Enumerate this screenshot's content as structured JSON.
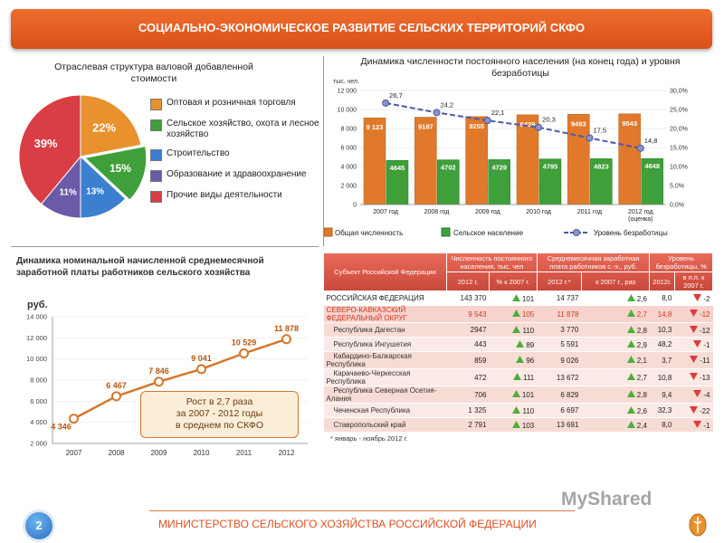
{
  "header": {
    "title": "СОЦИАЛЬНО-ЭКОНОМИЧЕСКОЕ РАЗВИТИЕ СЕЛЬСКИХ ТЕРРИТОРИЙ СКФО"
  },
  "footer": {
    "page_number": "2",
    "ministry": "МИНИСТЕРСТВО СЕЛЬСКОГО ХОЗЯЙСТВА РОССИЙСКОЙ ФЕДЕРАЦИИ",
    "watermark": "MyShared"
  },
  "colors": {
    "accent": "#e05a22",
    "bar_total": "#e07a2a",
    "bar_rural": "#3f9f3a",
    "line": "#4a5aa8"
  },
  "chart_data": [
    {
      "type": "pie",
      "title": "Отраслевая структура валовой добавленной стоимости",
      "slices": [
        {
          "label": "Оптовая и розничная торговля",
          "value": 22,
          "pct_label": "22%",
          "color": "#e8912d"
        },
        {
          "label": "Сельское хозяйство, охота и лесное хозяйство",
          "value": 15,
          "pct_label": "15%",
          "color": "#3f9f3a"
        },
        {
          "label": "Строительство",
          "value": 13,
          "pct_label": "13%",
          "color": "#3b7fd1"
        },
        {
          "label": "Образование и здравоохранение",
          "value": 11,
          "pct_label": "11%",
          "color": "#6b5aa8"
        },
        {
          "label": "Прочие виды деятельности",
          "value": 39,
          "pct_label": "39%",
          "color": "#d93e45"
        }
      ]
    },
    {
      "type": "bar",
      "title": "Динамика численности постоянного населения (на конец года) и уровня безработицы",
      "ylabel_left": "тыс. чел.",
      "categories": [
        "2007 год",
        "2008 год",
        "2009 год",
        "2010 год",
        "2011 год",
        "2012 год"
      ],
      "category_note": "(оценка)",
      "left_ticks": [
        "0",
        "2 000",
        "4 000",
        "6 000",
        "8 000",
        "10 000",
        "12 000"
      ],
      "right_ticks": [
        "0,0%",
        "5,0%",
        "10,0%",
        "15,0%",
        "20,0%",
        "25,0%",
        "30,0%"
      ],
      "ylim_left": [
        0,
        12000
      ],
      "ylim_right": [
        0,
        30
      ],
      "series": [
        {
          "name": "Общая численность",
          "values": [
            9123,
            9187,
            9255,
            9439,
            9493,
            9543
          ],
          "labels": [
            "9 123",
            "9187",
            "9255",
            "9439",
            "9493",
            "9543"
          ]
        },
        {
          "name": "Сельское население",
          "values": [
            4645,
            4702,
            4729,
            4795,
            4823,
            4848
          ],
          "labels": [
            "4645",
            "4702",
            "4729",
            "4795",
            "4823",
            "4848"
          ]
        },
        {
          "name": "Уровень безработицы",
          "values": [
            26.7,
            24.2,
            22.1,
            20.3,
            17.5,
            14.8
          ],
          "labels": [
            "26,7",
            "24,2",
            "22,1",
            "20,3",
            "17,5",
            "14,8"
          ]
        }
      ]
    },
    {
      "type": "line",
      "title": "Динамика номинальной начисленной среднемесячной заработной платы работников сельского хозяйства",
      "ylabel": "руб.",
      "x": [
        "2007",
        "2008",
        "2009",
        "2010",
        "2011",
        "2012"
      ],
      "values": [
        4346,
        6467,
        7846,
        9041,
        10529,
        11878
      ],
      "labels": [
        "4 346",
        "6 467",
        "7 846",
        "9 041",
        "10 529",
        "11 878"
      ],
      "yticks": [
        "2 000",
        "4 000",
        "6 000",
        "8 000",
        "10 000",
        "12 000",
        "14 000"
      ],
      "ylim": [
        2000,
        14000
      ],
      "annotation": [
        "Рост в 2,7 раза",
        "за 2007 - 2012 годы",
        "в среднем по СКФО"
      ]
    },
    {
      "type": "table",
      "headers": {
        "subject": "Субъект Российской Федерации",
        "population": "Численность постоянного населения, тыс. чел",
        "salary": "Среднемесячная заработная плата работников с.-х., руб.",
        "unemployment": "Уровень безработицы, %",
        "sub_pop_2012": "2012 г.",
        "sub_pop_pct": "% к 2007 г.",
        "sub_sal_2012": "2012 г.*",
        "sub_sal_times": "к 2007 г., раз",
        "sub_un_2012": "2012г.",
        "sub_un_pp": "в п.п. к 2007 г."
      },
      "rows": [
        {
          "subject": "РОССИЙСКАЯ ФЕДЕРАЦИЯ",
          "pop": "143 370",
          "pop_pct": "101",
          "sal": "14 737",
          "sal_x": "2,6",
          "un": "8,0",
          "un_pp": "-2"
        },
        {
          "subject": "СЕВЕРО-КАВКАЗСКИЙ ФЕДЕРАЛЬНЫЙ ОКРУГ",
          "pop": "9 543",
          "pop_pct": "105",
          "sal": "11 878",
          "sal_x": "2,7",
          "un": "14,8",
          "un_pp": "-12"
        },
        {
          "subject": "Республика Дагестан",
          "pop": "2947",
          "pop_pct": "110",
          "sal": "3 770",
          "sal_x": "2,8",
          "un": "10,3",
          "un_pp": "-12"
        },
        {
          "subject": "Республика Ингушетия",
          "pop": "443",
          "pop_pct": "89",
          "sal": "5 591",
          "sal_x": "2,9",
          "un": "48,2",
          "un_pp": "-1"
        },
        {
          "subject": "Кабардино-Балкарская Республика",
          "pop": "859",
          "pop_pct": "96",
          "sal": "9 026",
          "sal_x": "2,1",
          "un": "3,7",
          "un_pp": "-11"
        },
        {
          "subject": "Карачаево-Черкесская Республика",
          "pop": "472",
          "pop_pct": "111",
          "sal": "13 672",
          "sal_x": "2,7",
          "un": "10,8",
          "un_pp": "-13"
        },
        {
          "subject": "Республика Северная Осетия-Алания",
          "pop": "706",
          "pop_pct": "101",
          "sal": "6 829",
          "sal_x": "2,8",
          "un": "9,4",
          "un_pp": "-4"
        },
        {
          "subject": "Чеченская Республика",
          "pop": "1 325",
          "pop_pct": "110",
          "sal": "6 697",
          "sal_x": "2,6",
          "un": "32,3",
          "un_pp": "-22"
        },
        {
          "subject": "Ставропольский край",
          "pop": "2 791",
          "pop_pct": "103",
          "sal": "13 691",
          "sal_x": "2,4",
          "un": "8,0",
          "un_pp": "-1"
        }
      ],
      "footnote": "* январь - ноябрь 2012 г."
    }
  ]
}
